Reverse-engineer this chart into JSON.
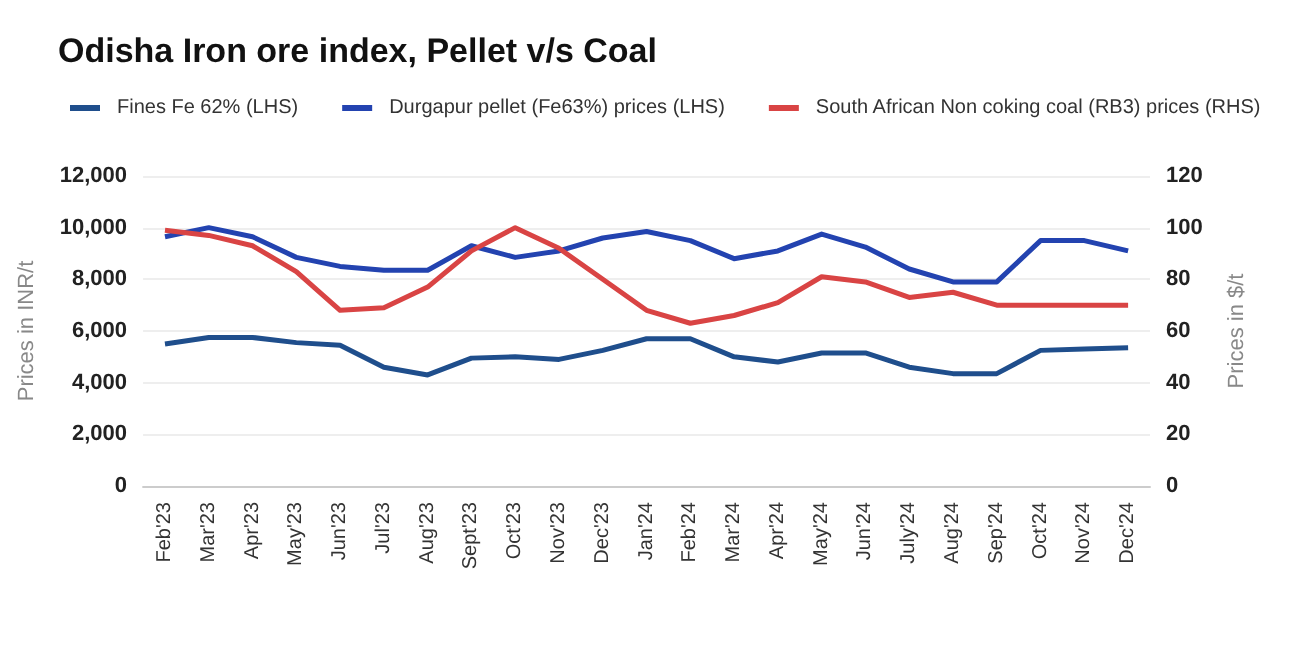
{
  "chart_data": {
    "type": "line",
    "title": "Odisha Iron ore index, Pellet v/s Coal",
    "categories": [
      "Feb'23",
      "Mar'23",
      "Apr'23",
      "May'23",
      "Jun'23",
      "Jul'23",
      "Aug'23",
      "Sept'23",
      "Oct'23",
      "Nov'23",
      "Dec'23",
      "Jan'24",
      "Feb'24",
      "Mar'24",
      "Apr'24",
      "May'24",
      "Jun'24",
      "July'24",
      "Aug'24",
      "Sep'24",
      "Oct'24",
      "Nov'24",
      "Dec'24"
    ],
    "series": [
      {
        "name": "Fines Fe 62% (LHS)",
        "color": "#1f4e8c",
        "values": [
          5500,
          5750,
          5750,
          5550,
          5450,
          4600,
          4300,
          4950,
          5000,
          4900,
          5250,
          5700,
          5700,
          5000,
          4800,
          5150,
          5150,
          4600,
          4350,
          4350,
          5250,
          5300,
          5350
        ]
      },
      {
        "name": "Durgapur pellet (Fe63%) prices (LHS)",
        "color": "#2343b0",
        "values": [
          9650,
          10000,
          9650,
          8850,
          8500,
          8350,
          8350,
          9300,
          8850,
          9100,
          9600,
          9850,
          9500,
          8800,
          9100,
          9750,
          9250,
          8400,
          7900,
          7900,
          9500,
          9500,
          9100
        ]
      },
      {
        "name": "South African Non coking coal (RB3) prices (RHS)",
        "color": "#d94444",
        "axis": "y2",
        "values": [
          99,
          97,
          93,
          83,
          68,
          69,
          77,
          91,
          100,
          92,
          80,
          68,
          63,
          66,
          71,
          81,
          79,
          73,
          75,
          70,
          70,
          70,
          70
        ]
      }
    ],
    "ylabel": "Prices in INR/t",
    "y2label": "Prices in $/t",
    "ylim": [
      0,
      12000
    ],
    "yticks": [
      0,
      {
        "value": 2000,
        "label": "2,000"
      },
      {
        "value": 4000,
        "label": "4,000"
      },
      {
        "value": 6000,
        "label": "6,000"
      },
      {
        "value": 8000,
        "label": "8,000"
      },
      {
        "value": 10000,
        "label": "10,000"
      },
      {
        "value": 12000,
        "label": "12,000"
      }
    ],
    "y2lim": [
      0,
      120
    ],
    "y2ticks": [
      0,
      20,
      40,
      60,
      80,
      100,
      120
    ],
    "grid": "y",
    "legend": "top left",
    "marker": "none"
  }
}
